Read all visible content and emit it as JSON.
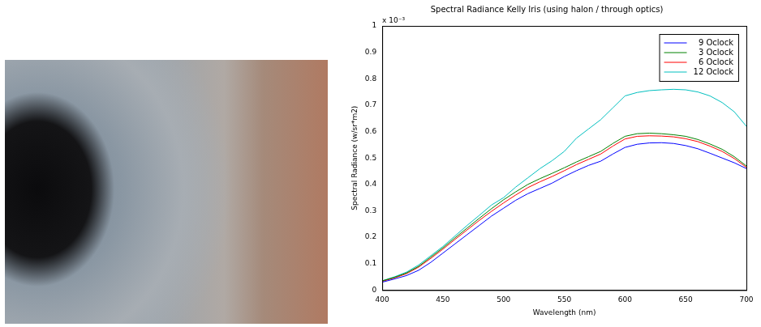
{
  "chart_data": {
    "type": "line",
    "title": "Spectral Radiance Kelly Iris (using halon / through optics)",
    "x_label": "Wavelength (nm)",
    "y_label": "Spectral Radiance (w/sr*m2)",
    "annotation": "x 10⁻³",
    "x": [
      400,
      410,
      420,
      430,
      440,
      450,
      460,
      470,
      480,
      490,
      500,
      510,
      520,
      530,
      540,
      550,
      560,
      570,
      580,
      590,
      600,
      610,
      620,
      630,
      640,
      650,
      660,
      670,
      680,
      690,
      700
    ],
    "series": [
      {
        "name": "9 Oclock",
        "color": "#0000ff",
        "values": [
          0.03,
          0.042,
          0.055,
          0.075,
          0.105,
          0.14,
          0.175,
          0.21,
          0.245,
          0.28,
          0.31,
          0.34,
          0.365,
          0.385,
          0.405,
          0.43,
          0.452,
          0.472,
          0.488,
          0.515,
          0.54,
          0.552,
          0.557,
          0.558,
          0.555,
          0.547,
          0.535,
          0.518,
          0.5,
          0.482,
          0.46
        ]
      },
      {
        "name": "3 Oclock",
        "color": "#008000",
        "values": [
          0.035,
          0.048,
          0.065,
          0.09,
          0.125,
          0.16,
          0.198,
          0.235,
          0.272,
          0.308,
          0.342,
          0.372,
          0.4,
          0.422,
          0.442,
          0.463,
          0.485,
          0.505,
          0.525,
          0.555,
          0.582,
          0.592,
          0.594,
          0.592,
          0.588,
          0.582,
          0.57,
          0.553,
          0.533,
          0.505,
          0.47
        ]
      },
      {
        "name": "6 Oclock",
        "color": "#ff0000",
        "values": [
          0.033,
          0.046,
          0.062,
          0.087,
          0.12,
          0.155,
          0.192,
          0.228,
          0.264,
          0.298,
          0.33,
          0.36,
          0.388,
          0.41,
          0.43,
          0.452,
          0.475,
          0.495,
          0.515,
          0.545,
          0.572,
          0.582,
          0.584,
          0.583,
          0.58,
          0.573,
          0.562,
          0.545,
          0.525,
          0.498,
          0.465
        ]
      },
      {
        "name": "12 Oclock",
        "color": "#00bfbf",
        "values": [
          0.035,
          0.05,
          0.068,
          0.095,
          0.13,
          0.165,
          0.205,
          0.245,
          0.283,
          0.322,
          0.35,
          0.39,
          0.425,
          0.46,
          0.49,
          0.525,
          0.575,
          0.61,
          0.645,
          0.69,
          0.735,
          0.748,
          0.755,
          0.758,
          0.76,
          0.758,
          0.75,
          0.735,
          0.71,
          0.675,
          0.62
        ]
      }
    ],
    "xlim": [
      400,
      700
    ],
    "xticks": [
      400,
      450,
      500,
      550,
      600,
      650,
      700
    ],
    "ylim": [
      0,
      1
    ],
    "yticks": [
      0,
      0.1,
      0.2,
      0.3,
      0.4,
      0.5,
      0.6,
      0.7,
      0.8,
      0.9,
      1
    ],
    "grid": false,
    "legend": "upper right"
  }
}
